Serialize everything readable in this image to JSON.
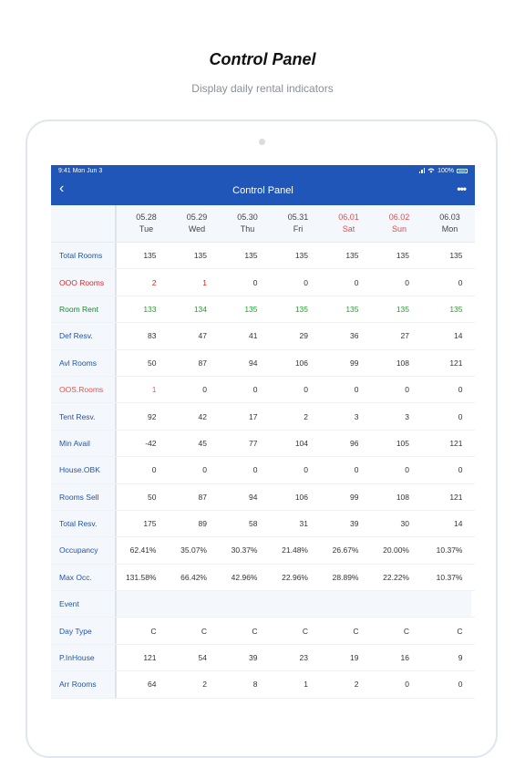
{
  "header": {
    "title": "Control Panel",
    "subtitle": "Display daily rental indicators"
  },
  "device": {
    "status_time": "9:41 Mon Jun 3",
    "battery": "100%"
  },
  "navbar": {
    "back_icon": "chevron-left-icon",
    "title": "Control Panel",
    "more_icon": "more-icon",
    "back_glyph": "‹",
    "more_glyph": "•••"
  },
  "colors": {
    "nav_blue": "#1f56b8",
    "label_blue": "#2255a8",
    "weekend_red": "#e84a4a",
    "green": "#22a02a"
  },
  "dates": [
    {
      "date": "05.28",
      "day": "Tue",
      "weekend": false
    },
    {
      "date": "05.29",
      "day": "Wed",
      "weekend": false
    },
    {
      "date": "05.30",
      "day": "Thu",
      "weekend": false
    },
    {
      "date": "05.31",
      "day": "Fri",
      "weekend": false
    },
    {
      "date": "06.01",
      "day": "Sat",
      "weekend": true
    },
    {
      "date": "06.02",
      "day": "Sun",
      "weekend": true
    },
    {
      "date": "06.03",
      "day": "Mon",
      "weekend": false
    }
  ],
  "rows": [
    {
      "label": "Total Rooms",
      "style": "blue",
      "values": [
        "135",
        "135",
        "135",
        "135",
        "135",
        "135",
        "135"
      ]
    },
    {
      "label": "OOO Rooms",
      "style": "red",
      "values": [
        "2",
        "1",
        "0",
        "0",
        "0",
        "0",
        "0"
      ]
    },
    {
      "label": "Room Rent",
      "style": "green",
      "values": [
        "133",
        "134",
        "135",
        "135",
        "135",
        "135",
        "135"
      ]
    },
    {
      "label": "Def Resv.",
      "style": "blue",
      "values": [
        "83",
        "47",
        "41",
        "29",
        "36",
        "27",
        "14"
      ]
    },
    {
      "label": "Avl Rooms",
      "style": "blue",
      "values": [
        "50",
        "87",
        "94",
        "106",
        "99",
        "108",
        "121"
      ]
    },
    {
      "label": "OOS.Rooms",
      "style": "salmon",
      "values": [
        "1",
        "0",
        "0",
        "0",
        "0",
        "0",
        "0"
      ]
    },
    {
      "label": "Tent Resv.",
      "style": "blue",
      "values": [
        "92",
        "42",
        "17",
        "2",
        "3",
        "3",
        "0"
      ]
    },
    {
      "label": "Min Avail",
      "style": "blue",
      "values": [
        "-42",
        "45",
        "77",
        "104",
        "96",
        "105",
        "121"
      ]
    },
    {
      "label": "House.OBK",
      "style": "blue",
      "values": [
        "0",
        "0",
        "0",
        "0",
        "0",
        "0",
        "0"
      ]
    },
    {
      "label": "Rooms Sell",
      "style": "blue",
      "values": [
        "50",
        "87",
        "94",
        "106",
        "99",
        "108",
        "121"
      ]
    },
    {
      "label": "Total Resv.",
      "style": "blue",
      "values": [
        "175",
        "89",
        "58",
        "31",
        "39",
        "30",
        "14"
      ]
    },
    {
      "label": "Occupancy",
      "style": "blue",
      "values": [
        "62.41%",
        "35.07%",
        "30.37%",
        "21.48%",
        "26.67%",
        "20.00%",
        "10.37%"
      ]
    },
    {
      "label": "Max Occ.",
      "style": "blue",
      "values": [
        "131.58%",
        "66.42%",
        "42.96%",
        "22.96%",
        "28.89%",
        "22.22%",
        "10.37%"
      ]
    },
    {
      "label": "Event",
      "style": "blue",
      "event": true,
      "values": [
        "",
        "",
        "",
        "",
        "",
        "",
        ""
      ]
    },
    {
      "label": "Day Type",
      "style": "blue",
      "values": [
        "C",
        "C",
        "C",
        "C",
        "C",
        "C",
        "C"
      ]
    },
    {
      "label": "P.InHouse",
      "style": "blue",
      "values": [
        "121",
        "54",
        "39",
        "23",
        "19",
        "16",
        "9"
      ]
    },
    {
      "label": "Arr Rooms",
      "style": "blue",
      "values": [
        "64",
        "2",
        "8",
        "1",
        "2",
        "0",
        "0"
      ]
    }
  ]
}
